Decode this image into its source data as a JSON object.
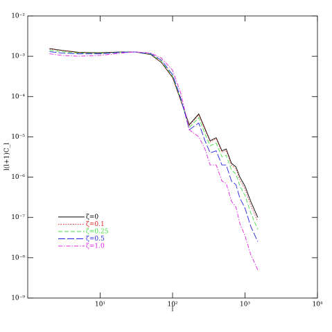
{
  "chart_data": {
    "type": "line",
    "xlabel": "l",
    "ylabel": "l(l+1)C_l",
    "xscale": "log",
    "yscale": "log",
    "xlim": [
      1,
      10000
    ],
    "ylim": [
      1e-09,
      0.01
    ],
    "xticks": [
      {
        "value": 10,
        "label": "10¹"
      },
      {
        "value": 100,
        "label": "10²"
      },
      {
        "value": 1000,
        "label": "10³"
      },
      {
        "value": 10000,
        "label": "10⁴"
      }
    ],
    "yticks": [
      {
        "value": 1e-09,
        "label": "10⁻⁹"
      },
      {
        "value": 1e-08,
        "label": "10⁻⁸"
      },
      {
        "value": 1e-07,
        "label": "10⁻⁷"
      },
      {
        "value": 1e-06,
        "label": "10⁻⁶"
      },
      {
        "value": 1e-05,
        "label": "10⁻⁵"
      },
      {
        "value": 0.0001,
        "label": "10⁻⁴"
      },
      {
        "value": 0.001,
        "label": "10⁻³"
      },
      {
        "value": 0.01,
        "label": "10⁻²"
      }
    ],
    "legend": "lower left",
    "x": [
      2,
      3,
      5,
      10,
      20,
      30,
      50,
      70,
      100,
      130,
      170,
      230,
      280,
      330,
      400,
      480,
      550,
      650,
      750,
      850,
      1000,
      1200,
      1500
    ],
    "series": [
      {
        "name": "ζ=0",
        "color": "#000000",
        "linestyle": "solid",
        "values": [
          0.00155,
          0.0014,
          0.00125,
          0.00122,
          0.00128,
          0.00128,
          0.0011,
          0.0007,
          0.0003,
          8e-05,
          2e-05,
          3.7e-05,
          1.6e-05,
          8e-06,
          9.5e-06,
          4.5e-06,
          5e-06,
          2.2e-06,
          1.8e-06,
          1e-06,
          6e-07,
          2.5e-07,
          1e-07
        ]
      },
      {
        "name": "ζ=0.1",
        "color": "#e02020",
        "linestyle": "dotted",
        "values": [
          0.0015,
          0.00138,
          0.00123,
          0.0012,
          0.00127,
          0.00128,
          0.0011,
          0.0007,
          0.00029,
          7.8e-05,
          1.9e-05,
          3.5e-05,
          1.5e-05,
          7.5e-06,
          9e-06,
          4.2e-06,
          4.6e-06,
          2e-06,
          1.6e-06,
          8.5e-07,
          5e-07,
          2e-07,
          8e-08
        ]
      },
      {
        "name": "ζ=0.25",
        "color": "#40e040",
        "linestyle": "dashed",
        "values": [
          0.0014,
          0.0013,
          0.0012,
          0.00118,
          0.00126,
          0.00128,
          0.00112,
          0.00075,
          0.00032,
          8.5e-05,
          1.7e-05,
          3e-05,
          1.2e-05,
          6e-06,
          7e-06,
          3.2e-06,
          3.5e-06,
          1.5e-06,
          1.2e-06,
          6e-07,
          3.5e-07,
          1.3e-07,
          5e-08
        ]
      },
      {
        "name": "ζ=0.5",
        "color": "#2020e0",
        "linestyle": "longdash",
        "values": [
          0.0013,
          0.0012,
          0.00115,
          0.00115,
          0.00125,
          0.00128,
          0.00115,
          0.0008,
          0.00035,
          9e-05,
          1.5e-05,
          2.2e-05,
          8e-06,
          4e-06,
          4.5e-06,
          2e-06,
          2e-06,
          8e-07,
          6.5e-07,
          3e-07,
          1.7e-07,
          6e-08,
          2.5e-08
        ]
      },
      {
        "name": "ζ=1.0",
        "color": "#e020e0",
        "linestyle": "dashdot",
        "values": [
          0.00115,
          0.00105,
          0.001,
          0.00105,
          0.0012,
          0.00128,
          0.0012,
          0.0009,
          0.00045,
          0.00012,
          1.5e-05,
          1e-05,
          5e-06,
          2e-06,
          2e-06,
          8e-07,
          7e-07,
          2.5e-07,
          1.8e-07,
          7e-08,
          3.5e-08,
          1.2e-08,
          5e-09
        ]
      }
    ]
  }
}
